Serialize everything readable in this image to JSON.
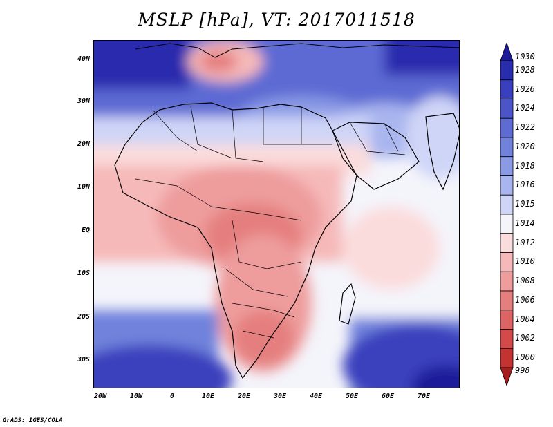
{
  "title": "MSLP [hPa], VT: 2017011518",
  "credit": "GrADS: IGES/COLA",
  "lat_ticks": [
    "40N",
    "30N",
    "20N",
    "10N",
    "EQ",
    "10S",
    "20S",
    "30S"
  ],
  "lon_ticks": [
    "20W",
    "10W",
    "0",
    "10E",
    "20E",
    "30E",
    "40E",
    "50E",
    "60E",
    "70E"
  ],
  "legend": {
    "levels": [
      "1030",
      "1028",
      "1026",
      "1024",
      "1022",
      "1020",
      "1018",
      "1016",
      "1015",
      "1014",
      "1012",
      "1010",
      "1008",
      "1006",
      "1004",
      "1002",
      "1000",
      "998"
    ],
    "colors": [
      "#1c1a9a",
      "#2a2cae",
      "#3a3fbd",
      "#4b55c8",
      "#5d6bd3",
      "#7082dc",
      "#8a9ae5",
      "#a9b5ee",
      "#cfd5f7",
      "#f4f4fb",
      "#fbdcdc",
      "#f6b9b9",
      "#ee9c9c",
      "#e57f7f",
      "#dc6464",
      "#d44a4a",
      "#c53232",
      "#a81e1e"
    ]
  }
}
